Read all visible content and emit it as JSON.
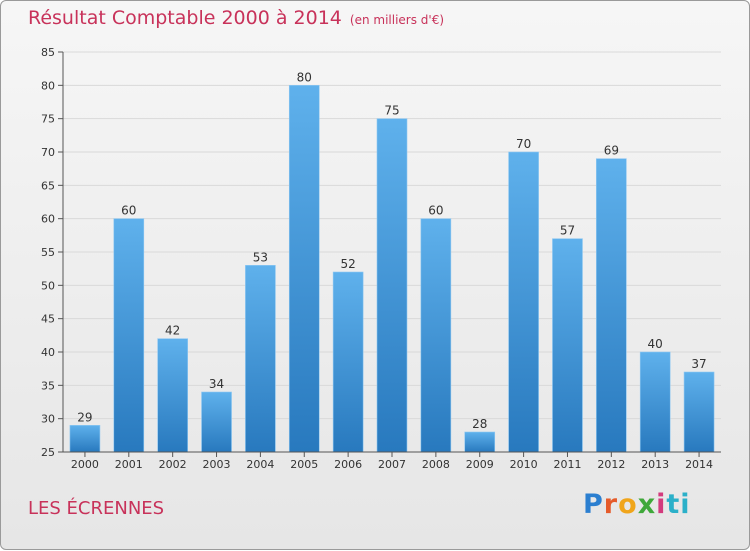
{
  "header": {
    "title": "Résultat Comptable 2000 à 2014",
    "subtitle": "(en milliers d'€)"
  },
  "footer": {
    "town": "LES ÉCRENNES",
    "logo_letters": [
      "P",
      "r",
      "o",
      "x",
      "i",
      "ti"
    ]
  },
  "colors": {
    "bar_top": "#5fb1ec",
    "bar_bottom": "#2879be",
    "title": "#c8325a",
    "grid": "#d9d9d9"
  },
  "chart_data": {
    "type": "bar",
    "title": "Résultat Comptable 2000 à 2014",
    "subtitle": "(en milliers d'€)",
    "xlabel": "",
    "ylabel": "",
    "categories": [
      "2000",
      "2001",
      "2002",
      "2003",
      "2004",
      "2005",
      "2006",
      "2007",
      "2008",
      "2009",
      "2010",
      "2011",
      "2012",
      "2013",
      "2014"
    ],
    "values": [
      29,
      60,
      42,
      34,
      53,
      80,
      52,
      75,
      60,
      28,
      70,
      57,
      69,
      40,
      37
    ],
    "ylim": [
      25,
      85
    ],
    "yticks": [
      25,
      30,
      35,
      40,
      45,
      50,
      55,
      60,
      65,
      70,
      75,
      80,
      85
    ],
    "grid": true
  }
}
